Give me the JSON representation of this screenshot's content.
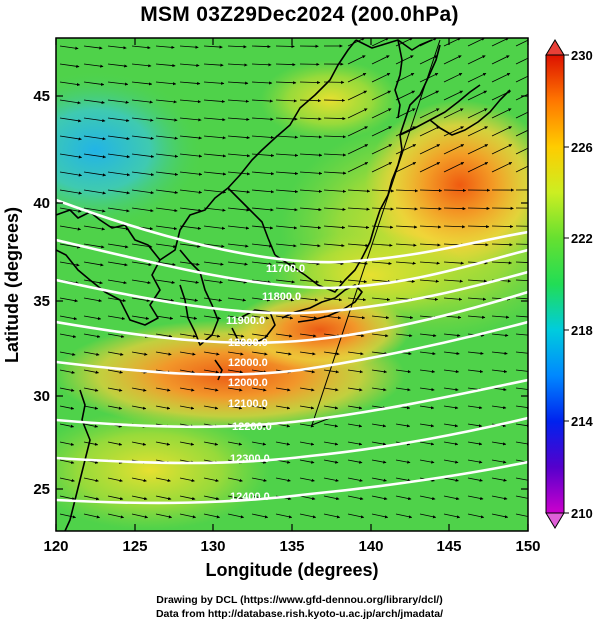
{
  "title": "MSM 03Z29Dec2024 (200.0hPa)",
  "x_axis": {
    "label": "Longitude (degrees)",
    "ticks": [
      "120",
      "125",
      "130",
      "135",
      "140",
      "145",
      "150"
    ],
    "range": [
      120,
      150
    ]
  },
  "y_axis": {
    "label": "Latitude  (degrees)",
    "ticks": [
      "25",
      "30",
      "35",
      "40",
      "45"
    ],
    "range": [
      22.5,
      47.5
    ]
  },
  "colorbar": {
    "ticks": [
      "230",
      "226",
      "222",
      "218",
      "214",
      "210"
    ],
    "range": [
      210,
      230
    ],
    "colors": [
      "#cc00cc",
      "#3300cc",
      "#0044ff",
      "#00bbee",
      "#22dd44",
      "#99ee22",
      "#eeee22",
      "#ffaa00",
      "#ee4400",
      "#cc0000"
    ]
  },
  "contour_labels": [
    "11700.0",
    "11800.0",
    "11900.0",
    "12000.0",
    "12100.0",
    "12200.0",
    "12300.0",
    "12400.0"
  ],
  "footer": {
    "line1": "Drawing by DCL (https://www.gfd-dennou.org/library/dcl/)",
    "line2": "Data from http://database.rish.kyoto-u.ac.jp/arch/jmadata/"
  },
  "colors": {
    "field_main": "#4fd24a",
    "field_warm": "#f5d23a",
    "field_hot": "#f0801e",
    "field_cool": "#3fc6c0",
    "contour": "#ffffff",
    "coast": "#000000"
  }
}
